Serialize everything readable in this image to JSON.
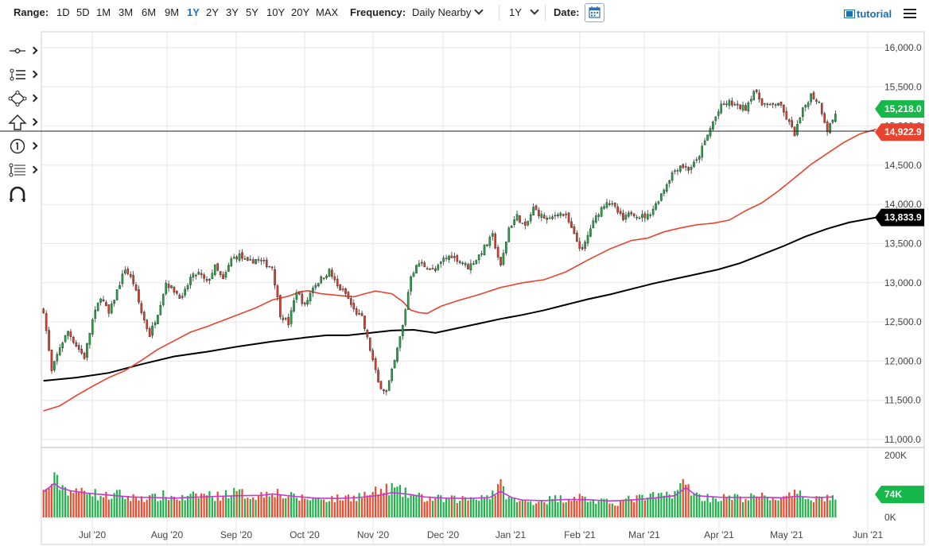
{
  "toolbar": {
    "range_label": "Range:",
    "ranges": [
      "1D",
      "5D",
      "1M",
      "3M",
      "6M",
      "9M",
      "1Y",
      "2Y",
      "3Y",
      "5Y",
      "10Y",
      "20Y",
      "MAX"
    ],
    "active_range": "1Y",
    "frequency_label": "Frequency:",
    "frequency_value": "Daily Nearby",
    "period_value": "1Y",
    "date_label": "Date:",
    "tutorial_label": "tutorial"
  },
  "sidebar": {
    "tools": [
      "crosshair-tool",
      "trend-lines-tool",
      "shapes-tool",
      "arrows-tool",
      "annotations-tool",
      "fibonacci-tool",
      "magnet-tool"
    ]
  },
  "chart_data": {
    "type": "candlestick",
    "price_axis": {
      "min": 11000,
      "max": 16000,
      "ticks": [
        "16,000.0",
        "15,500.0",
        "15,000.0",
        "14,500.0",
        "14,000.0",
        "13,500.0",
        "13,000.0",
        "12,500.0",
        "12,000.0",
        "11,500.0",
        "11,000.0"
      ]
    },
    "volume_axis": {
      "ticks": [
        "200K",
        "0K"
      ]
    },
    "x_labels": [
      "Jul '20",
      "Aug '20",
      "Sep '20",
      "Oct '20",
      "Nov '20",
      "Dec '20",
      "Jan '21",
      "Feb '21",
      "Mar '21",
      "Apr '21",
      "May '21",
      "Jun '21"
    ],
    "horizontal_line": 14935,
    "last_price": "15,218.0",
    "ma_fast_last": "14,922.9",
    "ma_slow_last": "13,833.9",
    "volume_last": "74K",
    "ma_fast_path": [
      [
        0,
        11365
      ],
      [
        6,
        11430
      ],
      [
        12,
        11560
      ],
      [
        18,
        11680
      ],
      [
        24,
        11790
      ],
      [
        30,
        11880
      ],
      [
        36,
        12010
      ],
      [
        42,
        12150
      ],
      [
        48,
        12260
      ],
      [
        54,
        12370
      ],
      [
        60,
        12440
      ],
      [
        66,
        12520
      ],
      [
        72,
        12600
      ],
      [
        78,
        12680
      ],
      [
        84,
        12780
      ],
      [
        90,
        12830
      ],
      [
        94,
        12880
      ],
      [
        97,
        12900
      ],
      [
        102,
        12860
      ],
      [
        108,
        12840
      ],
      [
        114,
        12820
      ],
      [
        118,
        12860
      ],
      [
        122,
        12895
      ],
      [
        128,
        12860
      ],
      [
        132,
        12760
      ],
      [
        135,
        12650
      ],
      [
        138,
        12620
      ],
      [
        141,
        12610
      ],
      [
        146,
        12700
      ],
      [
        152,
        12770
      ],
      [
        160,
        12850
      ],
      [
        168,
        12940
      ],
      [
        176,
        13000
      ],
      [
        184,
        13040
      ],
      [
        192,
        13140
      ],
      [
        200,
        13290
      ],
      [
        208,
        13430
      ],
      [
        216,
        13540
      ],
      [
        222,
        13570
      ],
      [
        228,
        13650
      ],
      [
        234,
        13700
      ],
      [
        240,
        13740
      ],
      [
        246,
        13760
      ],
      [
        252,
        13800
      ],
      [
        258,
        13920
      ],
      [
        264,
        14020
      ],
      [
        270,
        14170
      ],
      [
        276,
        14340
      ],
      [
        282,
        14510
      ],
      [
        288,
        14650
      ],
      [
        294,
        14790
      ],
      [
        300,
        14900
      ],
      [
        306,
        14960
      ]
    ],
    "ma_slow_path": [
      [
        0,
        11750
      ],
      [
        12,
        11790
      ],
      [
        24,
        11850
      ],
      [
        36,
        11960
      ],
      [
        48,
        12060
      ],
      [
        60,
        12120
      ],
      [
        72,
        12190
      ],
      [
        84,
        12250
      ],
      [
        96,
        12300
      ],
      [
        104,
        12330
      ],
      [
        112,
        12330
      ],
      [
        120,
        12360
      ],
      [
        128,
        12390
      ],
      [
        136,
        12400
      ],
      [
        144,
        12360
      ],
      [
        152,
        12420
      ],
      [
        160,
        12480
      ],
      [
        168,
        12540
      ],
      [
        176,
        12590
      ],
      [
        184,
        12650
      ],
      [
        192,
        12720
      ],
      [
        200,
        12790
      ],
      [
        208,
        12850
      ],
      [
        216,
        12920
      ],
      [
        224,
        12990
      ],
      [
        232,
        13050
      ],
      [
        240,
        13110
      ],
      [
        248,
        13170
      ],
      [
        256,
        13250
      ],
      [
        264,
        13360
      ],
      [
        272,
        13470
      ],
      [
        280,
        13590
      ],
      [
        288,
        13690
      ],
      [
        296,
        13770
      ],
      [
        306,
        13834
      ]
    ],
    "ohlc_anchors": [
      [
        0,
        12650
      ],
      [
        3,
        11860
      ],
      [
        6,
        12180
      ],
      [
        9,
        12380
      ],
      [
        12,
        12200
      ],
      [
        15,
        12050
      ],
      [
        18,
        12520
      ],
      [
        21,
        12830
      ],
      [
        24,
        12600
      ],
      [
        27,
        12900
      ],
      [
        30,
        13180
      ],
      [
        33,
        13000
      ],
      [
        36,
        12620
      ],
      [
        39,
        12330
      ],
      [
        42,
        12620
      ],
      [
        45,
        13000
      ],
      [
        48,
        12900
      ],
      [
        51,
        12800
      ],
      [
        54,
        13060
      ],
      [
        57,
        13120
      ],
      [
        60,
        13000
      ],
      [
        63,
        13200
      ],
      [
        66,
        13030
      ],
      [
        69,
        13300
      ],
      [
        72,
        13350
      ],
      [
        75,
        13250
      ],
      [
        78,
        13300
      ],
      [
        81,
        13250
      ],
      [
        84,
        13200
      ],
      [
        87,
        12600
      ],
      [
        90,
        12480
      ],
      [
        93,
        12900
      ],
      [
        96,
        12700
      ],
      [
        99,
        12950
      ],
      [
        102,
        13050
      ],
      [
        105,
        13150
      ],
      [
        108,
        12950
      ],
      [
        111,
        12860
      ],
      [
        114,
        12650
      ],
      [
        117,
        12550
      ],
      [
        120,
        12150
      ],
      [
        123,
        11720
      ],
      [
        126,
        11600
      ],
      [
        129,
        12000
      ],
      [
        132,
        12450
      ],
      [
        135,
        13100
      ],
      [
        138,
        13250
      ],
      [
        141,
        13200
      ],
      [
        144,
        13150
      ],
      [
        147,
        13300
      ],
      [
        150,
        13350
      ],
      [
        153,
        13280
      ],
      [
        156,
        13200
      ],
      [
        159,
        13300
      ],
      [
        162,
        13450
      ],
      [
        165,
        13600
      ],
      [
        168,
        13200
      ],
      [
        171,
        13700
      ],
      [
        174,
        13850
      ],
      [
        177,
        13700
      ],
      [
        180,
        13950
      ],
      [
        183,
        13850
      ],
      [
        186,
        13800
      ],
      [
        189,
        13900
      ],
      [
        192,
        13850
      ],
      [
        195,
        13600
      ],
      [
        198,
        13400
      ],
      [
        201,
        13700
      ],
      [
        204,
        13900
      ],
      [
        207,
        14050
      ],
      [
        210,
        13950
      ],
      [
        213,
        13800
      ],
      [
        216,
        13900
      ],
      [
        219,
        13850
      ],
      [
        222,
        13850
      ],
      [
        225,
        14000
      ],
      [
        228,
        14200
      ],
      [
        231,
        14400
      ],
      [
        234,
        14500
      ],
      [
        237,
        14450
      ],
      [
        240,
        14550
      ],
      [
        243,
        14800
      ],
      [
        246,
        15050
      ],
      [
        249,
        15250
      ],
      [
        252,
        15300
      ],
      [
        255,
        15250
      ],
      [
        258,
        15230
      ],
      [
        261,
        15450
      ],
      [
        264,
        15300
      ],
      [
        267,
        15250
      ],
      [
        270,
        15300
      ],
      [
        273,
        15100
      ],
      [
        276,
        14900
      ],
      [
        279,
        15200
      ],
      [
        282,
        15400
      ],
      [
        285,
        15300
      ],
      [
        288,
        14950
      ],
      [
        291,
        15150
      ]
    ],
    "volume_anchors": [
      [
        0,
        80
      ],
      [
        4,
        120
      ],
      [
        8,
        95
      ],
      [
        12,
        78
      ],
      [
        16,
        95
      ],
      [
        20,
        70
      ],
      [
        24,
        68
      ],
      [
        28,
        75
      ],
      [
        32,
        62
      ],
      [
        36,
        66
      ],
      [
        40,
        62
      ],
      [
        44,
        70
      ],
      [
        48,
        65
      ],
      [
        52,
        60
      ],
      [
        56,
        70
      ],
      [
        60,
        75
      ],
      [
        64,
        68
      ],
      [
        68,
        80
      ],
      [
        72,
        78
      ],
      [
        76,
        70
      ],
      [
        80,
        72
      ],
      [
        84,
        90
      ],
      [
        88,
        70
      ],
      [
        92,
        65
      ],
      [
        96,
        62
      ],
      [
        100,
        60
      ],
      [
        104,
        62
      ],
      [
        108,
        60
      ],
      [
        112,
        66
      ],
      [
        116,
        70
      ],
      [
        120,
        75
      ],
      [
        124,
        85
      ],
      [
        128,
        95
      ],
      [
        132,
        80
      ],
      [
        136,
        70
      ],
      [
        140,
        62
      ],
      [
        144,
        60
      ],
      [
        148,
        58
      ],
      [
        152,
        58
      ],
      [
        156,
        62
      ],
      [
        160,
        68
      ],
      [
        164,
        72
      ],
      [
        168,
        100
      ],
      [
        172,
        55
      ],
      [
        176,
        50
      ],
      [
        180,
        52
      ],
      [
        184,
        55
      ],
      [
        188,
        60
      ],
      [
        192,
        62
      ],
      [
        196,
        68
      ],
      [
        200,
        58
      ],
      [
        204,
        50
      ],
      [
        208,
        48
      ],
      [
        212,
        50
      ],
      [
        216,
        60
      ],
      [
        220,
        62
      ],
      [
        224,
        66
      ],
      [
        228,
        70
      ],
      [
        232,
        85
      ],
      [
        236,
        110
      ],
      [
        240,
        70
      ],
      [
        244,
        64
      ],
      [
        248,
        62
      ],
      [
        252,
        64
      ],
      [
        256,
        62
      ],
      [
        260,
        64
      ],
      [
        264,
        66
      ],
      [
        268,
        64
      ],
      [
        272,
        60
      ],
      [
        276,
        72
      ],
      [
        280,
        68
      ],
      [
        284,
        62
      ],
      [
        288,
        65
      ]
    ],
    "volume_ma_path": [
      [
        0,
        82
      ],
      [
        4,
        110
      ],
      [
        6,
        96
      ],
      [
        10,
        86
      ],
      [
        16,
        78
      ],
      [
        24,
        72
      ],
      [
        32,
        66
      ],
      [
        40,
        64
      ],
      [
        48,
        62
      ],
      [
        56,
        65
      ],
      [
        64,
        68
      ],
      [
        72,
        70
      ],
      [
        80,
        71
      ],
      [
        84,
        76
      ],
      [
        92,
        68
      ],
      [
        100,
        62
      ],
      [
        108,
        61
      ],
      [
        116,
        64
      ],
      [
        124,
        72
      ],
      [
        128,
        80
      ],
      [
        134,
        75
      ],
      [
        140,
        66
      ],
      [
        148,
        62
      ],
      [
        156,
        61
      ],
      [
        164,
        64
      ],
      [
        168,
        84
      ],
      [
        172,
        64
      ],
      [
        176,
        56
      ],
      [
        184,
        54
      ],
      [
        192,
        58
      ],
      [
        200,
        57
      ],
      [
        208,
        53
      ],
      [
        216,
        56
      ],
      [
        224,
        62
      ],
      [
        232,
        70
      ],
      [
        236,
        96
      ],
      [
        240,
        70
      ],
      [
        248,
        65
      ],
      [
        256,
        64
      ],
      [
        264,
        65
      ],
      [
        272,
        63
      ],
      [
        276,
        68
      ],
      [
        284,
        64
      ],
      [
        290,
        66
      ]
    ]
  }
}
